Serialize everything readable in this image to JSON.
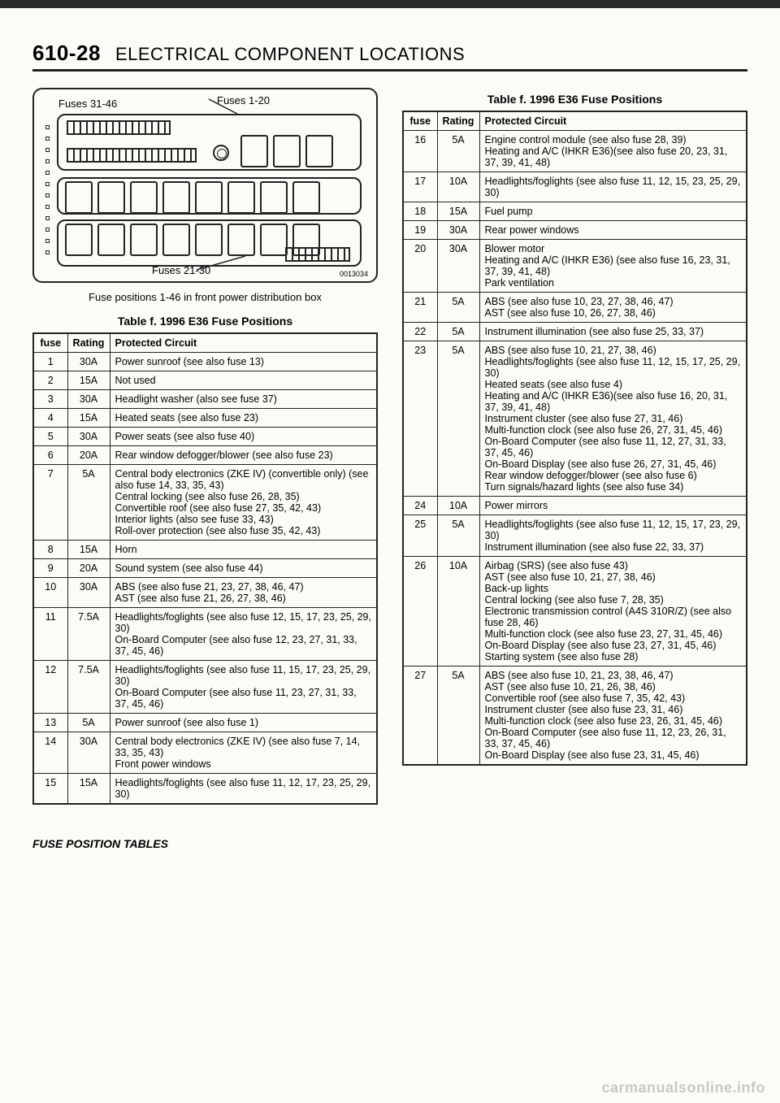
{
  "header": {
    "page_number": "610-28",
    "title": "ELECTRICAL COMPONENT LOCATIONS"
  },
  "diagram": {
    "label_top_left": "Fuses 31-46",
    "label_top_right": "Fuses 1-20",
    "label_bottom": "Fuses 21-30",
    "part_number": "0013034"
  },
  "fig_caption": "Fuse positions 1-46 in front power distribution box",
  "table_caption": "Table f. 1996 E36 Fuse Positions",
  "table_headers": {
    "c1": "fuse",
    "c2": "Rating",
    "c3": "Protected Circuit"
  },
  "left_rows": [
    {
      "f": "1",
      "r": "30A",
      "c": "Power sunroof (see also fuse 13)"
    },
    {
      "f": "2",
      "r": "15A",
      "c": "Not used"
    },
    {
      "f": "3",
      "r": "30A",
      "c": "Headlight washer (also see fuse 37)"
    },
    {
      "f": "4",
      "r": "15A",
      "c": "Heated seats (see also fuse 23)"
    },
    {
      "f": "5",
      "r": "30A",
      "c": "Power seats (see also fuse 40)"
    },
    {
      "f": "6",
      "r": "20A",
      "c": "Rear window defogger/blower (see also fuse 23)"
    },
    {
      "f": "7",
      "r": "5A",
      "c": "Central body electronics (ZKE IV) (convertible only) (see also fuse 14, 33, 35, 43)\nCentral locking (see also fuse 26, 28, 35)\nConvertible roof (see also fuse 27, 35, 42, 43)\nInterior lights (also see fuse 33, 43)\nRoll-over protection (see also fuse 35, 42, 43)"
    },
    {
      "f": "8",
      "r": "15A",
      "c": "Horn"
    },
    {
      "f": "9",
      "r": "20A",
      "c": "Sound system (see also fuse 44)"
    },
    {
      "f": "10",
      "r": "30A",
      "c": "ABS (see also fuse 21, 23, 27, 38, 46, 47)\nAST (see also fuse 21, 26, 27, 38, 46)"
    },
    {
      "f": "11",
      "r": "7.5A",
      "c": "Headlights/foglights (see also fuse 12, 15, 17, 23, 25, 29, 30)\nOn-Board Computer (see also fuse 12, 23, 27, 31, 33, 37, 45, 46)"
    },
    {
      "f": "12",
      "r": "7.5A",
      "c": "Headlights/foglights (see also fuse 11, 15, 17, 23, 25, 29, 30)\nOn-Board Computer (see also fuse 11, 23, 27, 31, 33, 37, 45, 46)"
    },
    {
      "f": "13",
      "r": "5A",
      "c": "Power sunroof (see also fuse 1)"
    },
    {
      "f": "14",
      "r": "30A",
      "c": "Central body electronics (ZKE IV) (see also fuse 7, 14, 33, 35, 43)\nFront power windows"
    },
    {
      "f": "15",
      "r": "15A",
      "c": "Headlights/foglights (see also fuse 11, 12, 17, 23, 25, 29, 30)"
    }
  ],
  "right_rows": [
    {
      "f": "16",
      "r": "5A",
      "c": "Engine control module (see also fuse 28, 39)\nHeating and A/C (IHKR E36)(see also fuse 20, 23, 31, 37, 39, 41, 48)"
    },
    {
      "f": "17",
      "r": "10A",
      "c": "Headlights/foglights (see also fuse 11, 12, 15, 23, 25, 29, 30)"
    },
    {
      "f": "18",
      "r": "15A",
      "c": "Fuel pump"
    },
    {
      "f": "19",
      "r": "30A",
      "c": "Rear power windows"
    },
    {
      "f": "20",
      "r": "30A",
      "c": "Blower motor\nHeating and A/C (IHKR E36) (see also fuse 16, 23, 31, 37, 39, 41, 48)\nPark ventilation"
    },
    {
      "f": "21",
      "r": "5A",
      "c": "ABS (see also fuse 10, 23, 27, 38, 46, 47)\nAST (see also fuse 10, 26, 27, 38, 46)"
    },
    {
      "f": "22",
      "r": "5A",
      "c": "Instrument illumination (see also fuse 25, 33, 37)"
    },
    {
      "f": "23",
      "r": "5A",
      "c": "ABS (see also fuse 10, 21, 27, 38, 46)\nHeadlights/foglights (see also fuse 11, 12, 15, 17, 25, 29, 30)\nHeated seats (see also fuse 4)\nHeating and A/C (IHKR E36)(see also fuse 16, 20, 31, 37, 39, 41, 48)\nInstrument cluster (see also fuse 27, 31, 46)\nMulti-function clock (see also fuse 26, 27, 31, 45, 46)\nOn-Board Computer (see also fuse 11, 12, 27, 31, 33, 37, 45, 46)\nOn-Board Display (see also fuse 26, 27, 31, 45, 46)\nRear window defogger/blower (see also fuse 6)\nTurn signals/hazard lights (see also fuse 34)"
    },
    {
      "f": "24",
      "r": "10A",
      "c": "Power mirrors"
    },
    {
      "f": "25",
      "r": "5A",
      "c": "Headlights/foglights (see also fuse 11, 12, 15, 17, 23, 29, 30)\nInstrument illumination (see also fuse 22, 33, 37)"
    },
    {
      "f": "26",
      "r": "10A",
      "c": "Airbag (SRS) (see also fuse 43)\nAST (see also fuse 10, 21, 27, 38, 46)\nBack-up lights\nCentral locking (see also fuse 7, 28, 35)\nElectronic transmission control (A4S 310R/Z) (see also fuse 28, 46)\nMulti-function clock (see also fuse 23, 27, 31, 45, 46)\nOn-Board Display (see also fuse 23, 27, 31, 45, 46)\nStarting system (see also fuse 28)"
    },
    {
      "f": "27",
      "r": "5A",
      "c": "ABS (see also fuse 10, 21, 23, 38, 46, 47)\nAST (see also fuse 10, 21, 26, 38, 46)\nConvertible roof (see also fuse 7, 35, 42, 43)\nInstrument cluster (see also fuse 23, 31, 46)\nMulti-function clock (see also fuse 23, 26, 31, 45, 46)\nOn-Board Computer (see also fuse 11, 12, 23, 26, 31, 33, 37, 45, 46)\nOn-Board Display (see also fuse 23, 31, 45, 46)"
    }
  ],
  "footer": "FUSE POSITION TABLES",
  "watermark": "carmanualsonline.info"
}
